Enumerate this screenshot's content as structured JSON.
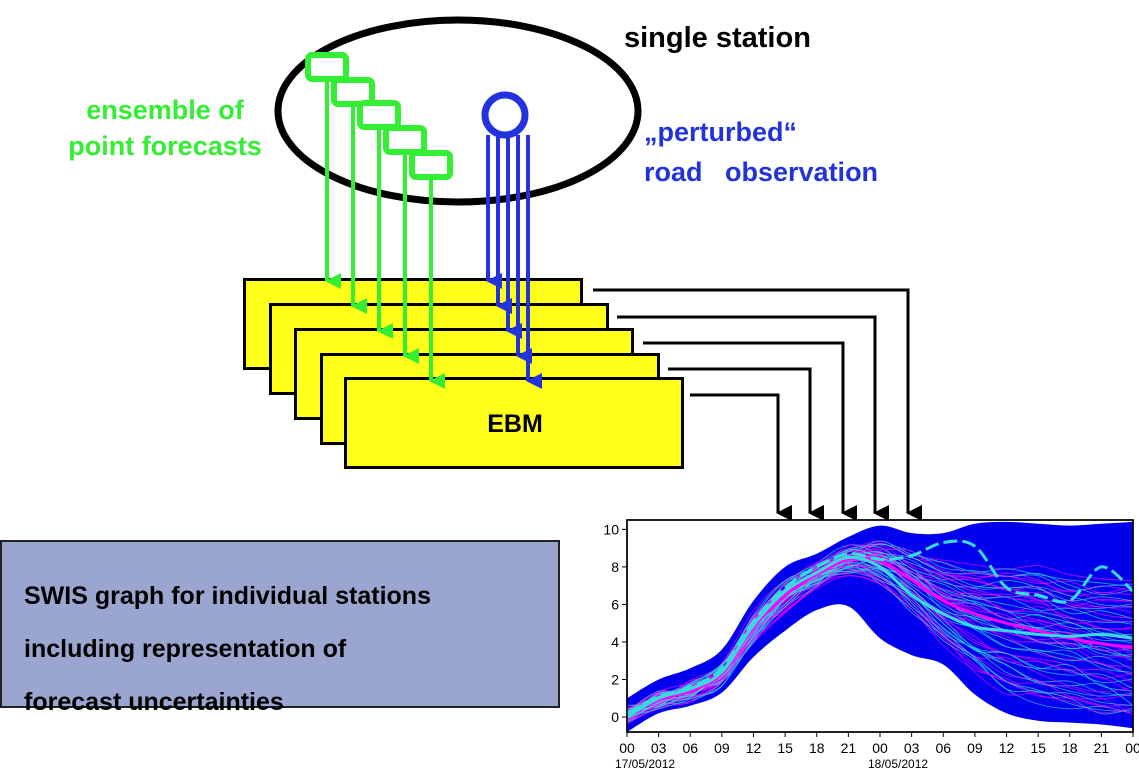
{
  "labels": {
    "single_station": "single station",
    "ensemble": [
      "ensemble of",
      "point forecasts"
    ],
    "perturbed": [
      "„perturbed“",
      "road   observation"
    ],
    "ebm": "EBM"
  },
  "swis": {
    "lines": [
      "SWIS graph for individual stations",
      "including representation of",
      "forecast uncertainties"
    ]
  },
  "colors": {
    "forecast_green": "#33ee33",
    "observation_blue": "#2233dd",
    "ebm_yellow": "#ffff1a",
    "swis_box": "#9aa6cf",
    "spread_blue": "#0000ee",
    "member_magenta": "#ff00ff",
    "member_cyan": "#33dddd"
  },
  "chart_data": {
    "type": "area",
    "title": "",
    "xlabel": "",
    "ylabel": "",
    "ylim": [
      -0.8,
      10.5
    ],
    "yticks": [
      0,
      2,
      4,
      6,
      8,
      10
    ],
    "xlim": [
      0,
      48
    ],
    "xticks": [
      {
        "x": 0,
        "label": "00",
        "date": "17/05/2012"
      },
      {
        "x": 3,
        "label": "03"
      },
      {
        "x": 6,
        "label": "06"
      },
      {
        "x": 9,
        "label": "09"
      },
      {
        "x": 12,
        "label": "12"
      },
      {
        "x": 15,
        "label": "15"
      },
      {
        "x": 18,
        "label": "18"
      },
      {
        "x": 21,
        "label": "21"
      },
      {
        "x": 24,
        "label": "00",
        "date": "18/05/2012"
      },
      {
        "x": 27,
        "label": "03"
      },
      {
        "x": 30,
        "label": "06"
      },
      {
        "x": 33,
        "label": "09"
      },
      {
        "x": 36,
        "label": "12"
      },
      {
        "x": 39,
        "label": "15"
      },
      {
        "x": 42,
        "label": "18"
      },
      {
        "x": 45,
        "label": "21"
      },
      {
        "x": 48,
        "label": "00"
      }
    ],
    "x": [
      0,
      3,
      6,
      9,
      12,
      15,
      18,
      21,
      24,
      27,
      30,
      33,
      36,
      39,
      42,
      45,
      48
    ],
    "spread_upper": [
      1.0,
      2.0,
      2.6,
      3.6,
      6.2,
      8.0,
      8.7,
      9.6,
      10.2,
      9.8,
      9.8,
      10.3,
      10.4,
      10.3,
      10.2,
      10.3,
      10.4
    ],
    "spread_lower": [
      -0.8,
      0.2,
      0.6,
      1.3,
      3.2,
      4.6,
      5.7,
      5.9,
      4.2,
      3.3,
      2.8,
      1.2,
      0.2,
      -0.2,
      -0.3,
      -0.4,
      -0.6
    ],
    "series": [
      {
        "values": [
          0.1,
          0.9,
          1.4,
          2.3,
          4.8,
          6.5,
          7.6,
          8.4,
          8.3,
          7.3,
          6.2,
          5.5,
          5.0,
          4.6,
          4.2,
          3.9,
          3.7
        ]
      },
      {
        "values": [
          0.2,
          1.1,
          1.6,
          2.6,
          5.1,
          6.9,
          8.0,
          8.7,
          8.4,
          8.6,
          9.3,
          9.1,
          6.9,
          6.5,
          6.2,
          8.0,
          6.7
        ]
      },
      {
        "values": [
          0.0,
          1.0,
          1.5,
          2.4,
          4.9,
          6.7,
          7.7,
          8.5,
          8.0,
          6.5,
          5.5,
          4.8,
          4.6,
          4.4,
          4.3,
          4.4,
          4.2
        ]
      }
    ]
  }
}
